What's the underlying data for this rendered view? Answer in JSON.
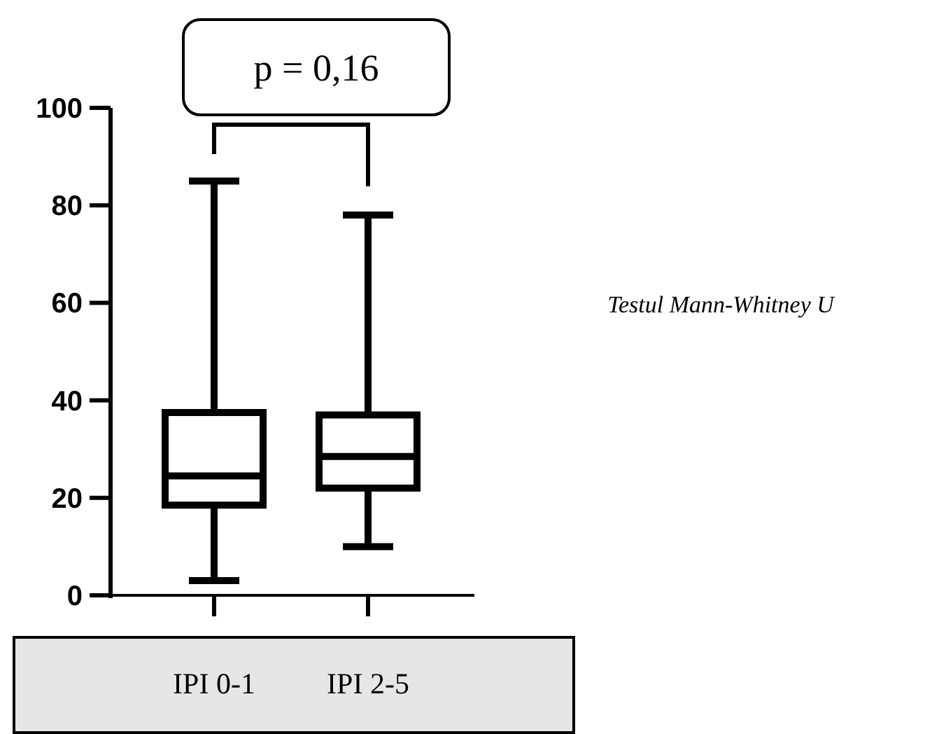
{
  "chart_data": {
    "type": "box",
    "categories": [
      "IPI 0-1",
      "IPI 2-5"
    ],
    "boxes": [
      {
        "low": 3,
        "q1": 18.5,
        "median": 24.5,
        "q3": 37.5,
        "high": 85
      },
      {
        "low": 10,
        "q1": 22,
        "median": 28.5,
        "q3": 37,
        "high": 78
      }
    ],
    "ylim": [
      0,
      100
    ],
    "yticks": [
      0,
      20,
      40,
      60,
      80,
      100
    ],
    "grid": false,
    "annotations": [
      "p = 0,16",
      "Testul Mann-Whitney U"
    ]
  }
}
